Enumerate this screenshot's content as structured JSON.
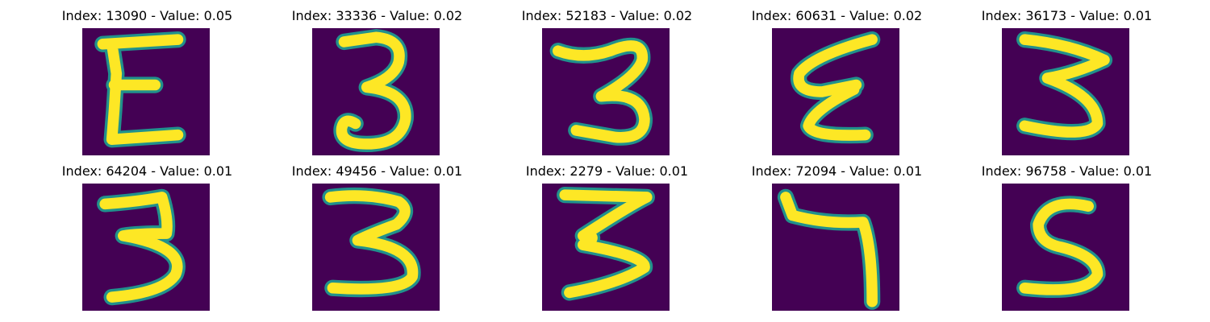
{
  "colors": {
    "background": "#440154",
    "stroke_core": "#fde725",
    "stroke_edge": "#21918c"
  },
  "panels": [
    {
      "title": "Index: 13090 - Value: 0.05",
      "glyph": "E"
    },
    {
      "title": "Index: 33336 - Value: 0.02",
      "glyph": "3"
    },
    {
      "title": "Index: 52183 - Value: 0.02",
      "glyph": "3"
    },
    {
      "title": "Index: 60631 - Value: 0.02",
      "glyph": "E"
    },
    {
      "title": "Index: 36173 - Value: 0.01",
      "glyph": "3"
    },
    {
      "title": "Index: 64204 - Value: 0.01",
      "glyph": "3"
    },
    {
      "title": "Index: 49456 - Value: 0.01",
      "glyph": "3"
    },
    {
      "title": "Index: 2279 - Value: 0.01",
      "glyph": "3"
    },
    {
      "title": "Index: 72094 - Value: 0.01",
      "glyph": "7"
    },
    {
      "title": "Index: 96758 - Value: 0.01",
      "glyph": "5"
    }
  ]
}
